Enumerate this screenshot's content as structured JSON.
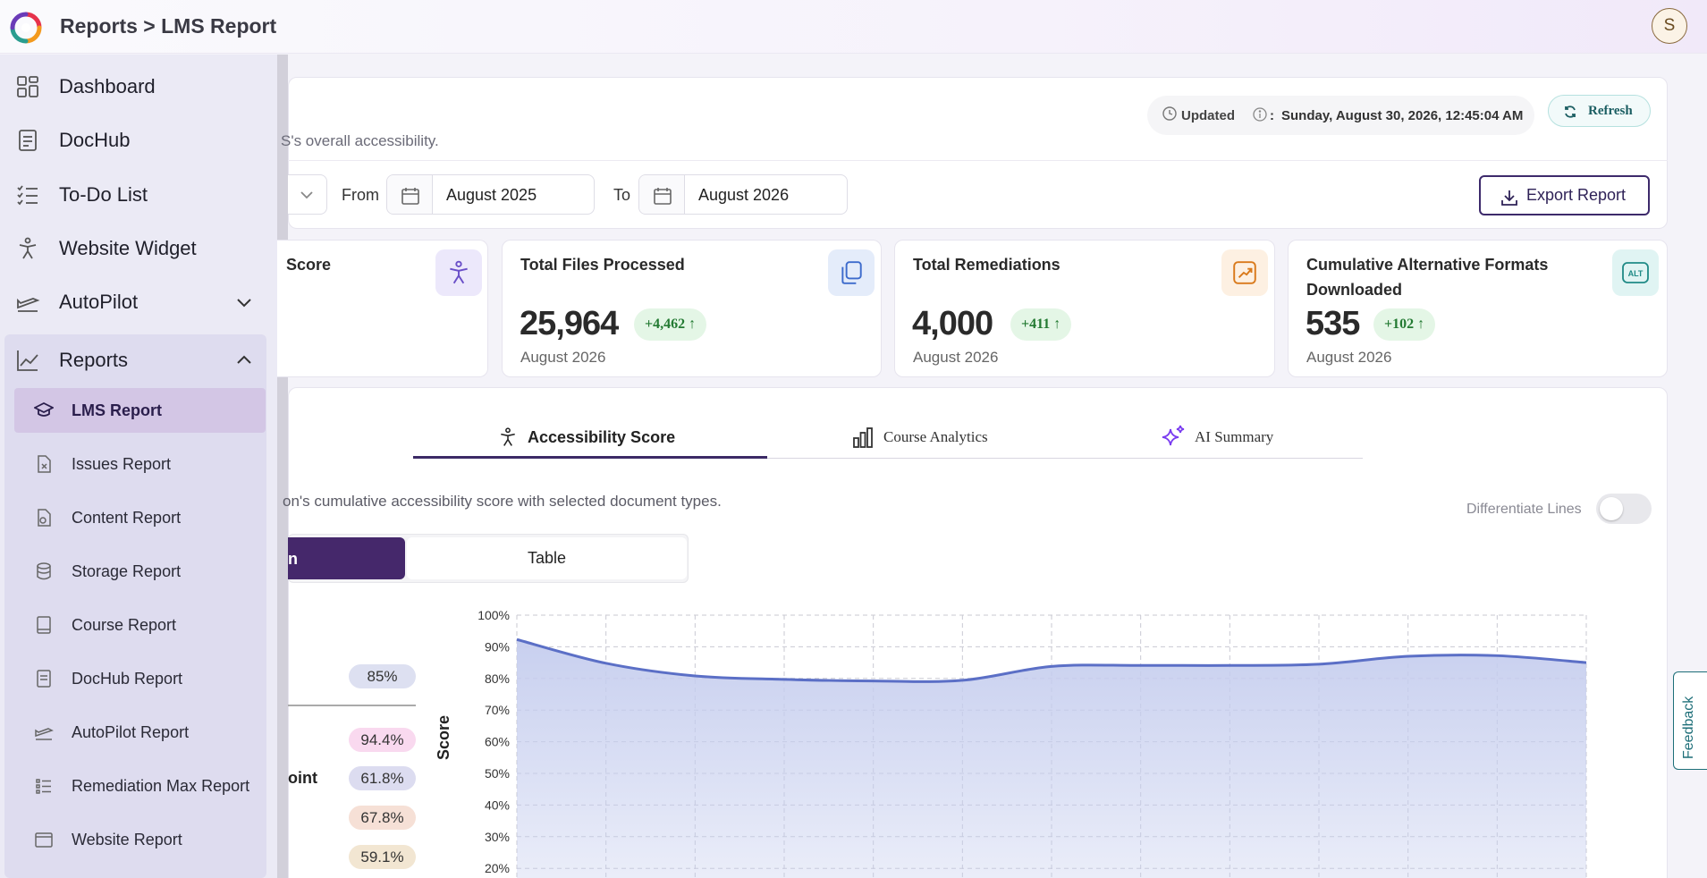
{
  "header": {
    "breadcrumb": "Reports > LMS Report",
    "avatar_initial": "S"
  },
  "sidebar": {
    "items": [
      {
        "label": "Dashboard",
        "icon": "dashboard-icon"
      },
      {
        "label": "DocHub",
        "icon": "document-icon"
      },
      {
        "label": "To-Do List",
        "icon": "checklist-icon"
      },
      {
        "label": "Website Widget",
        "icon": "accessibility-icon"
      },
      {
        "label": "AutoPilot",
        "icon": "plane-icon"
      },
      {
        "label": "Reports",
        "icon": "line-chart-icon"
      }
    ],
    "report_items": [
      {
        "label": "LMS Report",
        "icon": "graduation-cap-icon"
      },
      {
        "label": "Issues Report",
        "icon": "file-x-icon"
      },
      {
        "label": "Content Report",
        "icon": "file-icon"
      },
      {
        "label": "Storage Report",
        "icon": "database-icon"
      },
      {
        "label": "Course Report",
        "icon": "book-icon"
      },
      {
        "label": "DocHub Report",
        "icon": "document-icon"
      },
      {
        "label": "AutoPilot Report",
        "icon": "plane-icon"
      },
      {
        "label": "Remediation Max Report",
        "icon": "list-icon"
      },
      {
        "label": "Website Report",
        "icon": "browser-icon"
      }
    ]
  },
  "page": {
    "subtitle": "S's overall accessibility.",
    "updated_label": "Updated",
    "updated_colon": ":",
    "updated_value": "Sunday, August 30, 2026, 12:45:04 AM",
    "refresh_label": "Refresh",
    "from_label": "From",
    "from_value": "August 2025",
    "to_label": "To",
    "to_value": "August 2026",
    "export_label": "Export Report"
  },
  "cards": [
    {
      "title": "Score"
    },
    {
      "title": "Total Files Processed",
      "value": "25,964",
      "delta": "+4,462",
      "date": "August 2026"
    },
    {
      "title": "Total Remediations",
      "value": "4,000",
      "delta": "+411",
      "date": "August 2026"
    },
    {
      "title": "Cumulative Alternative Formats Downloaded",
      "value": "535",
      "delta": "+102",
      "date": "August 2026",
      "icon_text": "ALT"
    }
  ],
  "tabs": [
    {
      "label": "Accessibility Score",
      "icon": "accessibility-icon"
    },
    {
      "label": "Course Analytics",
      "icon": "bar-chart-icon"
    },
    {
      "label": "AI Summary",
      "icon": "sparkles-icon"
    }
  ],
  "chart_section": {
    "description": "on's cumulative accessibility score with selected document types.",
    "differentiate_label": "Differentiate Lines",
    "view_active_label": "n",
    "view_table_label": "Table",
    "legend_point_label": "oint",
    "pills": [
      {
        "value": "85%",
        "color": "#dde0f1"
      },
      {
        "value": "94.4%",
        "color": "#f9d9ef"
      },
      {
        "value": "61.8%",
        "color": "#dcdcf0"
      },
      {
        "value": "67.8%",
        "color": "#f6e0d6"
      },
      {
        "value": "59.1%",
        "color": "#f2e6d2"
      }
    ]
  },
  "feedback_label": "Feedback",
  "colors": {
    "accent": "#45286b",
    "line": "#5b6fc6",
    "area": "#c5cdee"
  },
  "chart_data": {
    "type": "area",
    "ylabel": "Score",
    "yticks": [
      "100%",
      "90%",
      "80%",
      "70%",
      "60%",
      "50%",
      "40%",
      "30%",
      "20%"
    ],
    "ylim": [
      20,
      100
    ],
    "values": [
      92.3,
      84.8,
      80.8,
      79.7,
      79.2,
      79.4,
      83.8,
      84.1,
      84.1,
      84.5,
      87,
      87.2,
      85
    ],
    "grid": true
  }
}
